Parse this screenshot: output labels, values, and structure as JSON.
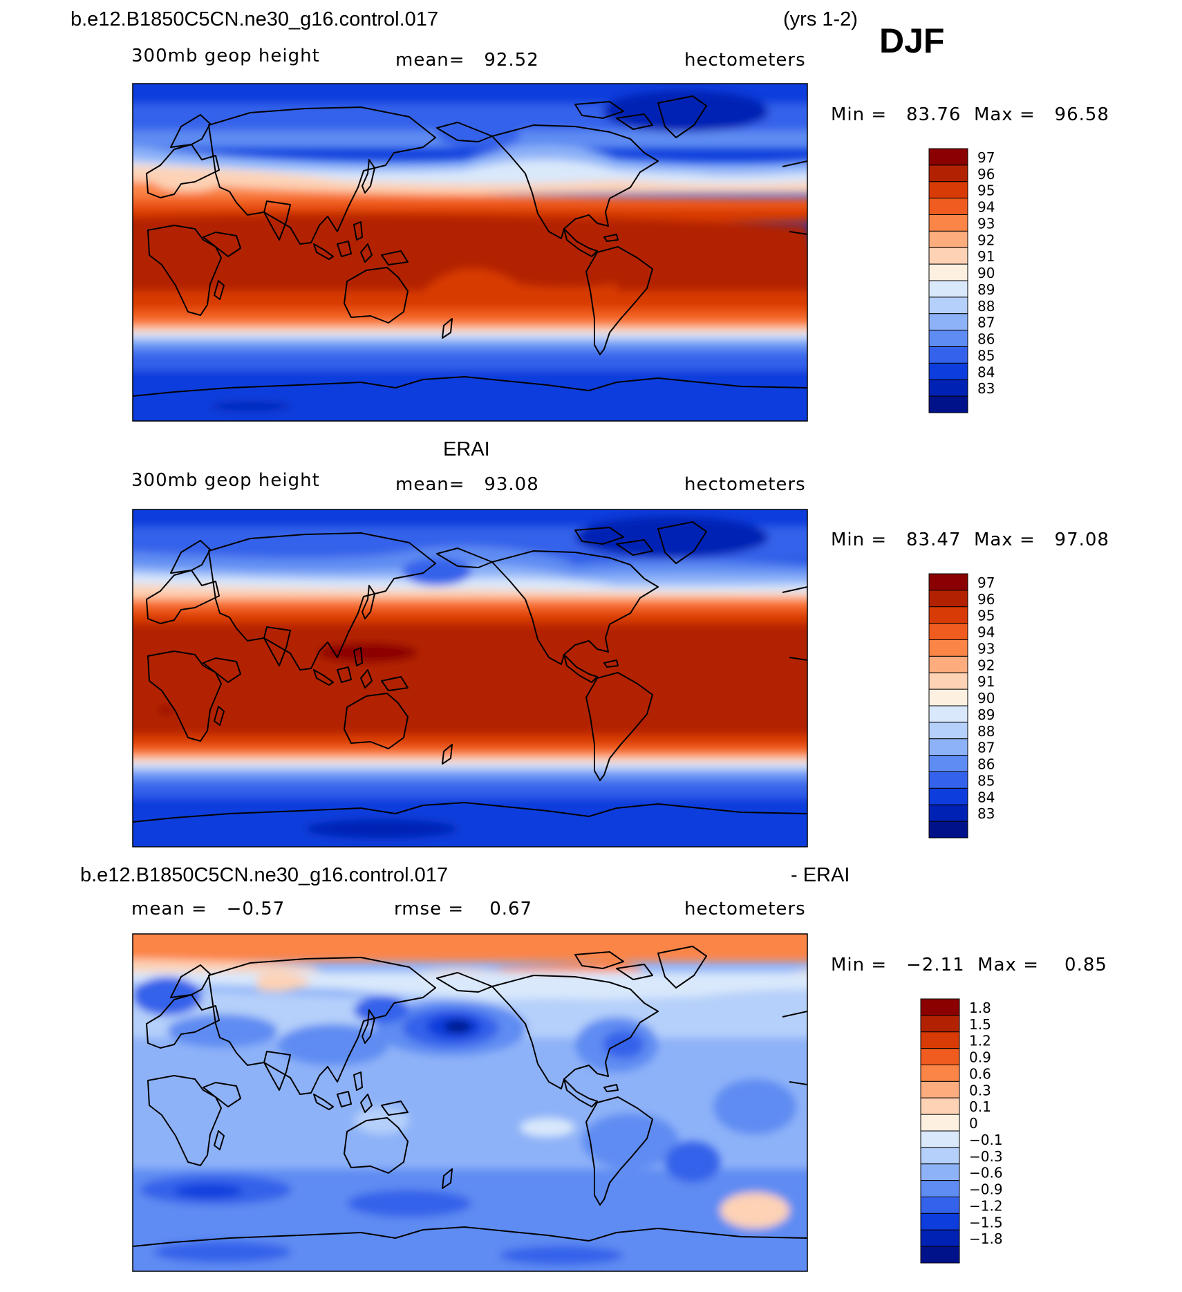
{
  "case_title": "b.e12.B1850C5CN.ne30_g16.control.017",
  "years": "(yrs 1-2)",
  "season": "DJF",
  "panels": [
    {
      "id": "model",
      "header": "",
      "left_label": "300mb geop height",
      "center_label": "mean=   92.52",
      "units": "hectometers",
      "minmax": "Min =   83.76  Max =   96.58",
      "levels": [
        "97",
        "96",
        "95",
        "94",
        "93",
        "92",
        "91",
        "90",
        "89",
        "88",
        "87",
        "86",
        "85",
        "84",
        "83"
      ],
      "colors": [
        "#8b0000",
        "#b22200",
        "#d83b05",
        "#f05c1f",
        "#fb8447",
        "#fdac7e",
        "#fdd2b5",
        "#fdf0e0",
        "#d9e8fb",
        "#b5d0fa",
        "#8eb2f8",
        "#5f8cf2",
        "#3562ea",
        "#0d3ddc",
        "#0022b4",
        "#001289"
      ]
    },
    {
      "id": "obs",
      "header": "ERAI",
      "left_label": "300mb geop height",
      "center_label": "mean=   93.08",
      "units": "hectometers",
      "minmax": "Min =   83.47  Max =   97.08",
      "levels": [
        "97",
        "96",
        "95",
        "94",
        "93",
        "92",
        "91",
        "90",
        "89",
        "88",
        "87",
        "86",
        "85",
        "84",
        "83"
      ],
      "colors": [
        "#8b0000",
        "#b22200",
        "#d83b05",
        "#f05c1f",
        "#fb8447",
        "#fdac7e",
        "#fdd2b5",
        "#fdf0e0",
        "#d9e8fb",
        "#b5d0fa",
        "#8eb2f8",
        "#5f8cf2",
        "#3562ea",
        "#0d3ddc",
        "#0022b4",
        "#001289"
      ]
    },
    {
      "id": "diff",
      "header": "b.e12.B1850C5CN.ne30_g16.control.017",
      "header_right": "- ERAI",
      "left_label": "mean =   −0.57",
      "center_label": "rmse =    0.67",
      "units": "hectometers",
      "minmax": "Min =   −2.11  Max =    0.85",
      "levels": [
        "1.8",
        "1.5",
        "1.2",
        "0.9",
        "0.6",
        "0.3",
        "0.1",
        "0",
        "−0.1",
        "−0.3",
        "−0.6",
        "−0.9",
        "−1.2",
        "−1.5",
        "−1.8"
      ],
      "colors": [
        "#8b0000",
        "#b22200",
        "#d83b05",
        "#f05c1f",
        "#fb8447",
        "#fdac7e",
        "#fdd2b5",
        "#fdf0e0",
        "#d9e8fb",
        "#b5d0fa",
        "#8eb2f8",
        "#5f8cf2",
        "#3562ea",
        "#0d3ddc",
        "#0022b4",
        "#001289"
      ]
    }
  ]
}
